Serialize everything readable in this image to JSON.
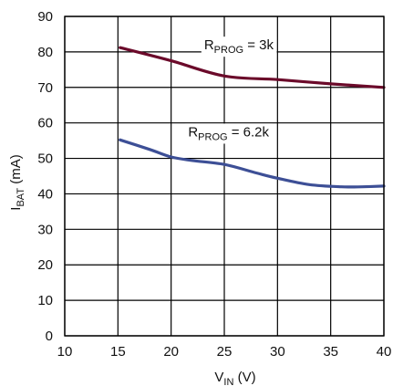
{
  "chart_data": {
    "type": "line",
    "title": "",
    "xlabel": {
      "main": "V",
      "sub": "IN",
      "unit": " (V)"
    },
    "ylabel": {
      "main": "I",
      "sub": "BAT",
      "unit": " (mA)"
    },
    "xlim": [
      10,
      40
    ],
    "ylim": [
      0,
      90
    ],
    "xticks": [
      10,
      15,
      20,
      25,
      30,
      35,
      40
    ],
    "yticks": [
      0,
      10,
      20,
      30,
      40,
      50,
      60,
      70,
      80,
      90
    ],
    "grid": true,
    "legend": "none",
    "series": [
      {
        "color": "#6b0a2a",
        "x": [
          15.2,
          20,
          25,
          30,
          35,
          40
        ],
        "y": [
          81.2,
          77.5,
          73.2,
          72.2,
          71.0,
          70.0
        ]
      },
      {
        "color": "#3d4f96",
        "x": [
          15.2,
          18,
          20,
          22,
          25,
          28,
          30,
          33,
          36,
          38,
          40
        ],
        "y": [
          55.2,
          52.5,
          50.4,
          49.4,
          48.3,
          45.9,
          44.4,
          42.6,
          42.0,
          42.0,
          42.2
        ]
      }
    ],
    "annotations": [
      {
        "main": "R",
        "sub": "PROG",
        "text": " = 3k",
        "x": 23.1,
        "y": 80.7
      },
      {
        "main": "R",
        "sub": "PROG",
        "text": " = 6.2k",
        "x": 21.6,
        "y": 56.2
      }
    ]
  }
}
